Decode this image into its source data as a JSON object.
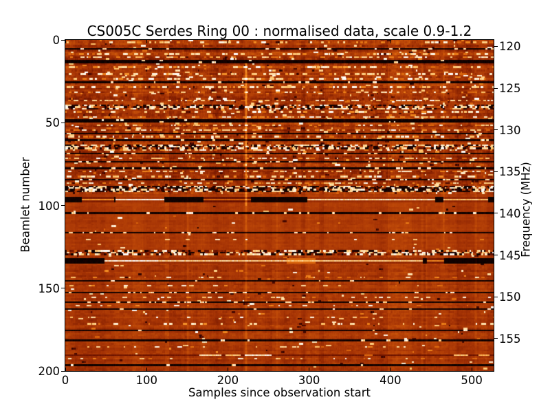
{
  "figure": {
    "title": "CS005C Serdes Ring 00 : normalised data, scale 0.9-1.2",
    "xlabel": "Samples since observation start",
    "ylabel_left": "Beamlet number",
    "ylabel_right": "Frequency (MHz)"
  },
  "chart_data": {
    "type": "heatmap",
    "title": "CS005C Serdes Ring 00 : normalised data, scale 0.9-1.2",
    "xlabel": "Samples since observation start",
    "ylabel": "Beamlet number",
    "ylabel_right": "Frequency (MHz)",
    "value_scale": [
      0.9,
      1.2
    ],
    "x_range": [
      0,
      527
    ],
    "y_range": [
      0,
      200
    ],
    "x_ticks": [
      0,
      100,
      200,
      300,
      400,
      500
    ],
    "y_ticks_left": [
      0,
      50,
      100,
      150,
      200
    ],
    "y_ticks_right": [
      120,
      125,
      130,
      135,
      140,
      145,
      150,
      155
    ],
    "freq_axis": {
      "f0_mhz_at_beamlet0": 119.22,
      "mhz_per_beamlet": 0.1984
    },
    "grid": false,
    "legend": "none",
    "colormap": {
      "name": "hot-like (black-red-orange-white)",
      "stops": [
        [
          0.0,
          "#000000"
        ],
        [
          0.15,
          "#2e0300"
        ],
        [
          0.25,
          "#5c0c00"
        ],
        [
          0.35,
          "#7f1c00"
        ],
        [
          0.45,
          "#a63405"
        ],
        [
          0.52,
          "#bc4708"
        ],
        [
          0.6,
          "#d55f0b"
        ],
        [
          0.7,
          "#ec7f18"
        ],
        [
          0.8,
          "#fca43c"
        ],
        [
          0.88,
          "#ffc873"
        ],
        [
          0.94,
          "#ffe3b0"
        ],
        [
          1.0,
          "#ffffff"
        ]
      ]
    },
    "render": {
      "seed": 11,
      "nx": 527,
      "ny": 200
    },
    "regions": [
      {
        "from": 0,
        "to": 92,
        "base": 0.455,
        "row_var": 0.05,
        "cell_noise": 0.05,
        "speckle_p": 0.01,
        "dark_p": 0.004,
        "col_sens": 1.25
      },
      {
        "from": 93,
        "to": 126,
        "base": 0.475,
        "row_var": 0.015,
        "cell_noise": 0.018,
        "speckle_p": 0.0012,
        "dark_p": 0.0005,
        "col_sens": 0.8
      },
      {
        "from": 127,
        "to": 200,
        "base": 0.465,
        "row_var": 0.028,
        "cell_noise": 0.028,
        "speckle_p": 0.0035,
        "dark_p": 0.0012,
        "col_sens": 1.0
      }
    ],
    "features": {
      "black_lines": [
        {
          "b": 5,
          "dash": 0.3
        },
        {
          "b": 12,
          "width": 2,
          "dash": 0.1
        },
        {
          "b": 25,
          "dash": 0.3
        },
        {
          "b": 48,
          "width": 2,
          "dash": 0.08
        },
        {
          "b": 56,
          "dash": 0.25
        },
        {
          "b": 60,
          "dash": 0.3
        },
        {
          "b": 68,
          "dash": 0.35
        },
        {
          "b": 73,
          "dash": 0.2
        },
        {
          "b": 77,
          "dash": 0.4
        },
        {
          "b": 84,
          "dash": 0.55
        },
        {
          "b": 104,
          "dash": 0.3
        },
        {
          "b": 116,
          "dash": 0.35
        },
        {
          "b": 145,
          "dash": 0.12
        },
        {
          "b": 152,
          "dash": 0.3
        },
        {
          "b": 158,
          "dash": 0.35
        },
        {
          "b": 162,
          "dash": 0.1
        },
        {
          "b": 175,
          "dash": 0.15
        },
        {
          "b": 181,
          "dash": 0.1
        },
        {
          "b": 196,
          "dash": 0.1
        }
      ],
      "static_bands": [
        {
          "from": 39,
          "to": 41,
          "density": 0.45
        },
        {
          "from": 63,
          "to": 65,
          "density": 0.5
        },
        {
          "from": 88,
          "to": 91,
          "density": 0.72
        },
        {
          "from": 127,
          "to": 129,
          "density": 0.45
        }
      ],
      "streak_bands": [
        {
          "rows": [
            95,
            96,
            97
          ],
          "base": 0.05,
          "segments": [
            [
              20,
              60,
              0.78
            ],
            [
              62,
              122,
              1.0
            ],
            [
              170,
              228,
              0.62
            ],
            [
              298,
              455,
              0.95
            ],
            [
              465,
              520,
              0.88
            ]
          ]
        },
        {
          "rows": [
            132,
            133,
            134
          ],
          "base": 0.05,
          "segments": [
            [
              48,
              114,
              1.0
            ],
            [
              114,
              308,
              0.92
            ],
            [
              272,
              440,
              0.9
            ],
            [
              445,
              466,
              0.72
            ]
          ]
        },
        {
          "rows": [
            190
          ],
          "base": 0.3,
          "segments": [
            [
              165,
              192,
              0.95
            ],
            [
              197,
              216,
              0.9
            ],
            [
              221,
              254,
              0.98
            ],
            [
              368,
              378,
              0.65
            ],
            [
              478,
              496,
              0.9
            ],
            [
              508,
              522,
              0.85
            ]
          ]
        }
      ],
      "dash_rows": [
        1,
        8,
        10,
        16,
        20,
        23,
        28,
        31,
        36,
        43,
        46,
        51,
        54,
        58,
        66,
        71,
        79,
        82,
        86,
        110,
        120,
        143,
        148,
        155,
        160,
        167,
        171,
        185,
        192
      ],
      "bright_columns": [
        {
          "s": 222,
          "amp": 0.26,
          "from": 14,
          "to": 100
        },
        {
          "s": 222,
          "amp": 0.09,
          "from": 100,
          "to": 200
        },
        {
          "s": 343,
          "amp": 0.05,
          "from": 0,
          "to": 95
        },
        {
          "s": 380,
          "amp": 0.04,
          "from": 0,
          "to": 95
        },
        {
          "s": 465,
          "amp": 0.06,
          "from": 0,
          "to": 130
        },
        {
          "s": 505,
          "amp": 0.05,
          "from": 30,
          "to": 200
        },
        {
          "s": 150,
          "amp": 0.04,
          "from": 95,
          "to": 200
        },
        {
          "s": 260,
          "amp": 0.04,
          "from": 95,
          "to": 200
        },
        {
          "s": 444,
          "amp": 0.05,
          "from": 100,
          "to": 200
        }
      ]
    }
  }
}
